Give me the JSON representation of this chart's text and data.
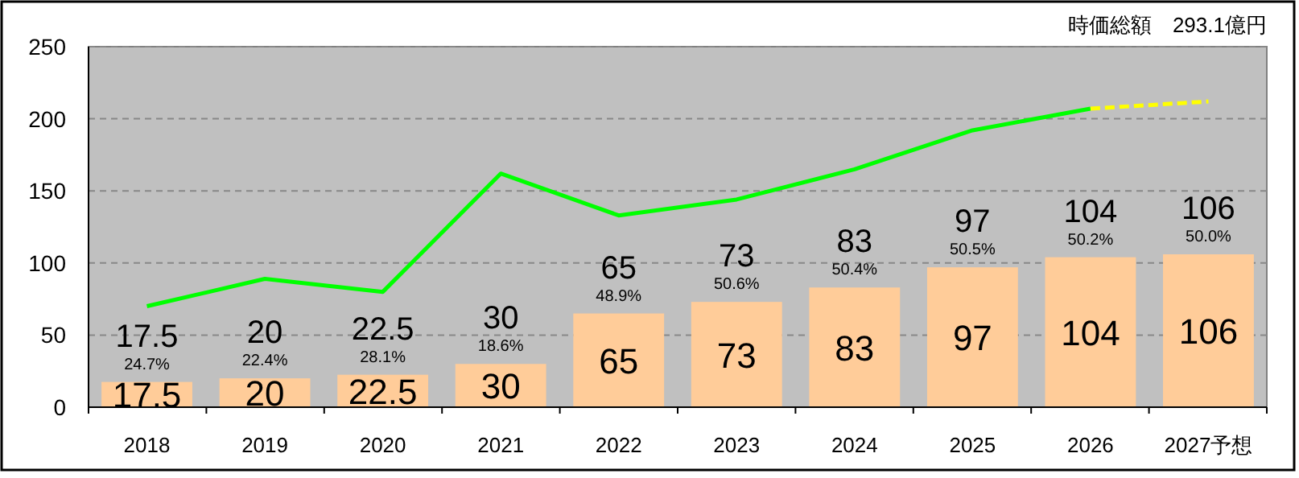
{
  "chart_data": {
    "type": "bar",
    "categories": [
      "2018",
      "2019",
      "2020",
      "2021",
      "2022",
      "2023",
      "2024",
      "2025",
      "2026",
      "2027予想"
    ],
    "series": [
      {
        "color": "#ffcc99",
        "values": [
          17.5,
          20,
          22.5,
          30,
          65,
          73,
          83,
          97,
          104,
          106
        ],
        "value_labels": [
          "17.5",
          "20",
          "22.5",
          "30",
          "65",
          "73",
          "83",
          "97",
          "104",
          "106"
        ]
      },
      {
        "type": "line",
        "color": "#00ff00",
        "values": [
          70,
          89,
          80,
          162,
          133,
          144,
          165,
          192,
          207,
          null
        ]
      },
      {
        "type": "line",
        "color": "#ffff00",
        "line_style": "dashed",
        "values": [
          null,
          null,
          null,
          null,
          null,
          null,
          null,
          null,
          207,
          212
        ]
      }
    ],
    "ylim": [
      0,
      250
    ],
    "yticks": [
      0,
      50,
      100,
      150,
      200,
      250
    ],
    "grid": "y",
    "annotations": [
      "時価総額　293.1億円",
      {
        "text": "17.5",
        "x": "2018",
        "y": 17.5
      },
      {
        "text": "24.7%",
        "x": "2018",
        "y": 17.5
      },
      {
        "text": "20",
        "x": "2019",
        "y": 20
      },
      {
        "text": "22.4%",
        "x": "2019",
        "y": 20
      },
      {
        "text": "22.5",
        "x": "2020",
        "y": 22.5
      },
      {
        "text": "28.1%",
        "x": "2020",
        "y": 22.5
      },
      {
        "text": "30",
        "x": "2021",
        "y": 30
      },
      {
        "text": "18.6%",
        "x": "2021",
        "y": 30
      },
      {
        "text": "65",
        "x": "2022",
        "y": 65
      },
      {
        "text": "48.9%",
        "x": "2022",
        "y": 65
      },
      {
        "text": "73",
        "x": "2023",
        "y": 73
      },
      {
        "text": "50.6%",
        "x": "2023",
        "y": 73
      },
      {
        "text": "83",
        "x": "2024",
        "y": 83
      },
      {
        "text": "50.4%",
        "x": "2024",
        "y": 83
      },
      {
        "text": "97",
        "x": "2025",
        "y": 97
      },
      {
        "text": "50.5%",
        "x": "2025",
        "y": 97
      },
      {
        "text": "104",
        "x": "2026",
        "y": 104
      },
      {
        "text": "50.2%",
        "x": "2026",
        "y": 104
      },
      {
        "text": "106",
        "x": "2027予想",
        "y": 106
      },
      {
        "text": "50.0%",
        "x": "2027予想",
        "y": 106
      }
    ]
  }
}
